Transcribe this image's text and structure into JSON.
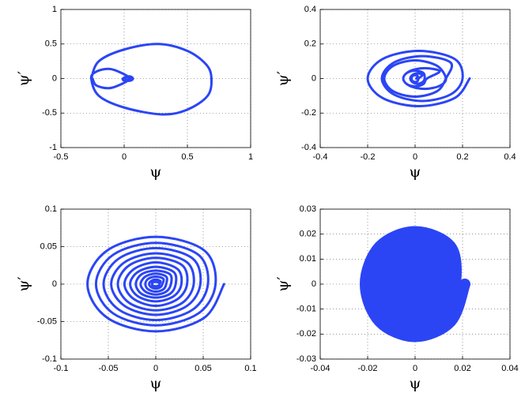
{
  "chart_data": [
    {
      "type": "line",
      "xlabel": "ψ",
      "ylabel": "ψ′",
      "color": "#2b45f5",
      "grid": true,
      "xlim": [
        -0.5,
        1
      ],
      "xticks": [
        -0.5,
        0,
        0.5,
        1
      ],
      "ylim": [
        -1,
        1
      ],
      "yticks": [
        -1,
        -0.5,
        0,
        0.5,
        1
      ],
      "x": [
        -0.26,
        -0.2,
        0,
        0.27,
        0.5,
        0.65,
        0.69,
        0.66,
        0.5,
        0.3,
        0,
        -0.2,
        -0.26,
        -0.22,
        -0.12,
        -0.02,
        0.04,
        -0.02,
        -0.12,
        -0.22,
        -0.25,
        null,
        0.02,
        0.05,
        0.07,
        0.05,
        0,
        -0.01,
        0.02,
        0.05,
        0.02,
        0.01
      ],
      "values": [
        0,
        0.25,
        0.42,
        0.5,
        0.4,
        0.2,
        0,
        -0.25,
        -0.45,
        -0.52,
        -0.42,
        -0.25,
        0,
        0.1,
        0.14,
        0.08,
        0,
        -0.08,
        -0.14,
        -0.1,
        0,
        null,
        0.03,
        0.03,
        0,
        -0.03,
        -0.03,
        0,
        0.02,
        0,
        -0.02,
        0
      ]
    },
    {
      "type": "line",
      "xlabel": "ψ",
      "ylabel": "ψ′",
      "color": "#2b45f5",
      "grid": true,
      "xlim": [
        -0.4,
        0.4
      ],
      "xticks": [
        -0.4,
        -0.2,
        0,
        0.2,
        0.4
      ],
      "ylim": [
        -0.4,
        0.4
      ],
      "yticks": [
        -0.4,
        -0.2,
        0,
        0.2,
        0.4
      ],
      "x": [
        0.23,
        0.167,
        0.015,
        -0.137,
        -0.2,
        -0.137,
        0.015,
        0.167,
        0.2,
        0.15,
        0.03,
        -0.09,
        -0.14,
        -0.09,
        0.03,
        0.15,
        0.13,
        0.092,
        0,
        -0.092,
        -0.13,
        -0.092,
        0,
        0.092,
        0.13,
        0.104,
        0.04,
        -0.024,
        -0.05,
        -0.024,
        0.04,
        0.104,
        0.05,
        0.035,
        0,
        -0.035,
        -0.05,
        -0.035,
        0,
        0.035,
        0.04,
        0.031,
        0.01,
        -0.011,
        -0.02,
        -0.011,
        0.01,
        0.031,
        0.015,
        0.011,
        0,
        -0.011,
        -0.015,
        -0.011,
        0,
        0.011,
        0.005
      ],
      "values": [
        0,
        -0.113,
        -0.16,
        -0.113,
        0,
        0.113,
        0.16,
        0.113,
        0,
        -0.092,
        -0.13,
        -0.092,
        0,
        0.092,
        0.13,
        0.092,
        0,
        -0.074,
        -0.105,
        -0.074,
        0,
        0.074,
        0.105,
        0.074,
        0,
        -0.042,
        -0.06,
        -0.042,
        0,
        0.042,
        0.06,
        0.042,
        0,
        -0.032,
        -0.045,
        -0.032,
        0,
        0.032,
        0.045,
        0.032,
        0,
        -0.021,
        -0.03,
        -0.021,
        0,
        0.021,
        0.03,
        0.021,
        0,
        -0.014,
        -0.02,
        -0.014,
        0,
        0.014,
        0.02,
        0.014,
        0
      ]
    },
    {
      "type": "line",
      "xlabel": "ψ",
      "ylabel": "ψ′",
      "color": "#2b45f5",
      "grid": true,
      "xlim": [
        -0.1,
        0.1
      ],
      "xticks": [
        -0.1,
        -0.05,
        0,
        0.05,
        0.1
      ],
      "ylim": [
        -0.1,
        0.1
      ],
      "yticks": [
        -0.1,
        -0.05,
        0,
        0.05,
        0.1
      ],
      "x": [
        0.072,
        0.051,
        0,
        -0.051,
        -0.072,
        -0.051,
        0,
        0.051,
        0.063,
        0.045,
        0,
        -0.045,
        -0.063,
        -0.045,
        0,
        0.045,
        0.055,
        0.039,
        0,
        -0.039,
        -0.055,
        -0.039,
        0,
        0.039,
        0.047,
        0.033,
        0,
        -0.033,
        -0.047,
        -0.033,
        0,
        0.033,
        0.04,
        0.028,
        0,
        -0.028,
        -0.04,
        -0.028,
        0,
        0.028,
        0.033,
        0.023,
        0,
        -0.023,
        -0.033,
        -0.023,
        0,
        0.023,
        0.027,
        0.019,
        0,
        -0.019,
        -0.027,
        -0.019,
        0,
        0.019,
        0.021,
        0.015,
        0,
        -0.015,
        -0.021,
        -0.015,
        0,
        0.015,
        0.016,
        0.011,
        0,
        -0.011,
        -0.016,
        -0.011,
        0,
        0.011,
        0.011,
        0.008,
        0,
        -0.008,
        -0.011,
        -0.008,
        0,
        0.008,
        0.007,
        0.005,
        0,
        -0.005,
        -0.007,
        -0.005,
        0,
        0.005,
        0.004,
        0.003,
        0,
        -0.003,
        -0.004,
        -0.003,
        0,
        0.003
      ],
      "values": [
        0,
        -0.045,
        -0.063,
        -0.045,
        0,
        0.045,
        0.063,
        0.045,
        0,
        -0.039,
        -0.055,
        -0.039,
        0,
        0.039,
        0.055,
        0.039,
        0,
        -0.034,
        -0.048,
        -0.034,
        0,
        0.034,
        0.048,
        0.034,
        0,
        -0.029,
        -0.041,
        -0.029,
        0,
        0.029,
        0.041,
        0.029,
        0,
        -0.025,
        -0.035,
        -0.025,
        0,
        0.025,
        0.035,
        0.025,
        0,
        -0.02,
        -0.029,
        -0.02,
        0,
        0.02,
        0.029,
        0.02,
        0,
        -0.016,
        -0.023,
        -0.016,
        0,
        0.016,
        0.023,
        0.016,
        0,
        -0.013,
        -0.018,
        -0.013,
        0,
        0.013,
        0.018,
        0.013,
        0,
        -0.01,
        -0.014,
        -0.01,
        0,
        0.01,
        0.014,
        0.01,
        0,
        -0.007,
        -0.01,
        -0.007,
        0,
        0.007,
        0.01,
        0.007,
        0,
        -0.004,
        -0.006,
        -0.004,
        0,
        0.004,
        0.006,
        0.004,
        0,
        -0.002,
        -0.003,
        -0.002,
        0,
        0.002,
        0.003,
        0.002
      ]
    },
    {
      "type": "line",
      "xlabel": "ψ",
      "ylabel": "ψ′",
      "color": "#2b45f5",
      "grid": true,
      "xlim": [
        -0.04,
        0.04
      ],
      "xticks": [
        -0.04,
        -0.02,
        0,
        0.02,
        0.04
      ],
      "ylim": [
        -0.03,
        0.03
      ],
      "yticks": [
        -0.03,
        -0.02,
        -0.01,
        0,
        0.01,
        0.02,
        0.03
      ],
      "x": [
        0.021,
        0.015,
        0,
        -0.015,
        -0.021,
        -0.015,
        0,
        0.015,
        0.017,
        0.012,
        0,
        -0.012,
        -0.017,
        -0.012,
        0,
        0.012,
        0.013,
        0.009,
        0,
        -0.009,
        -0.013,
        -0.009,
        0,
        0.009,
        0.009,
        0.006,
        0,
        -0.006,
        -0.009,
        -0.006,
        0,
        0.006,
        0.005,
        0.004,
        0,
        -0.004,
        -0.005,
        -0.004,
        0,
        0.004,
        0.002,
        0.001,
        0,
        -0.001,
        -0.002,
        -0.001,
        0,
        0.001
      ],
      "values": [
        0,
        -0.015,
        -0.021,
        -0.015,
        0,
        0.015,
        0.021,
        0.015,
        0,
        -0.012,
        -0.017,
        -0.012,
        0,
        0.012,
        0.017,
        0.012,
        0,
        -0.009,
        -0.013,
        -0.009,
        0,
        0.009,
        0.013,
        0.009,
        0,
        -0.006,
        -0.009,
        -0.006,
        0,
        0.006,
        0.009,
        0.006,
        0,
        -0.004,
        -0.005,
        -0.004,
        0,
        0.004,
        0.005,
        0.004,
        0,
        -0.001,
        -0.002,
        -0.001,
        0,
        0.001,
        0.002,
        0.001
      ]
    }
  ]
}
